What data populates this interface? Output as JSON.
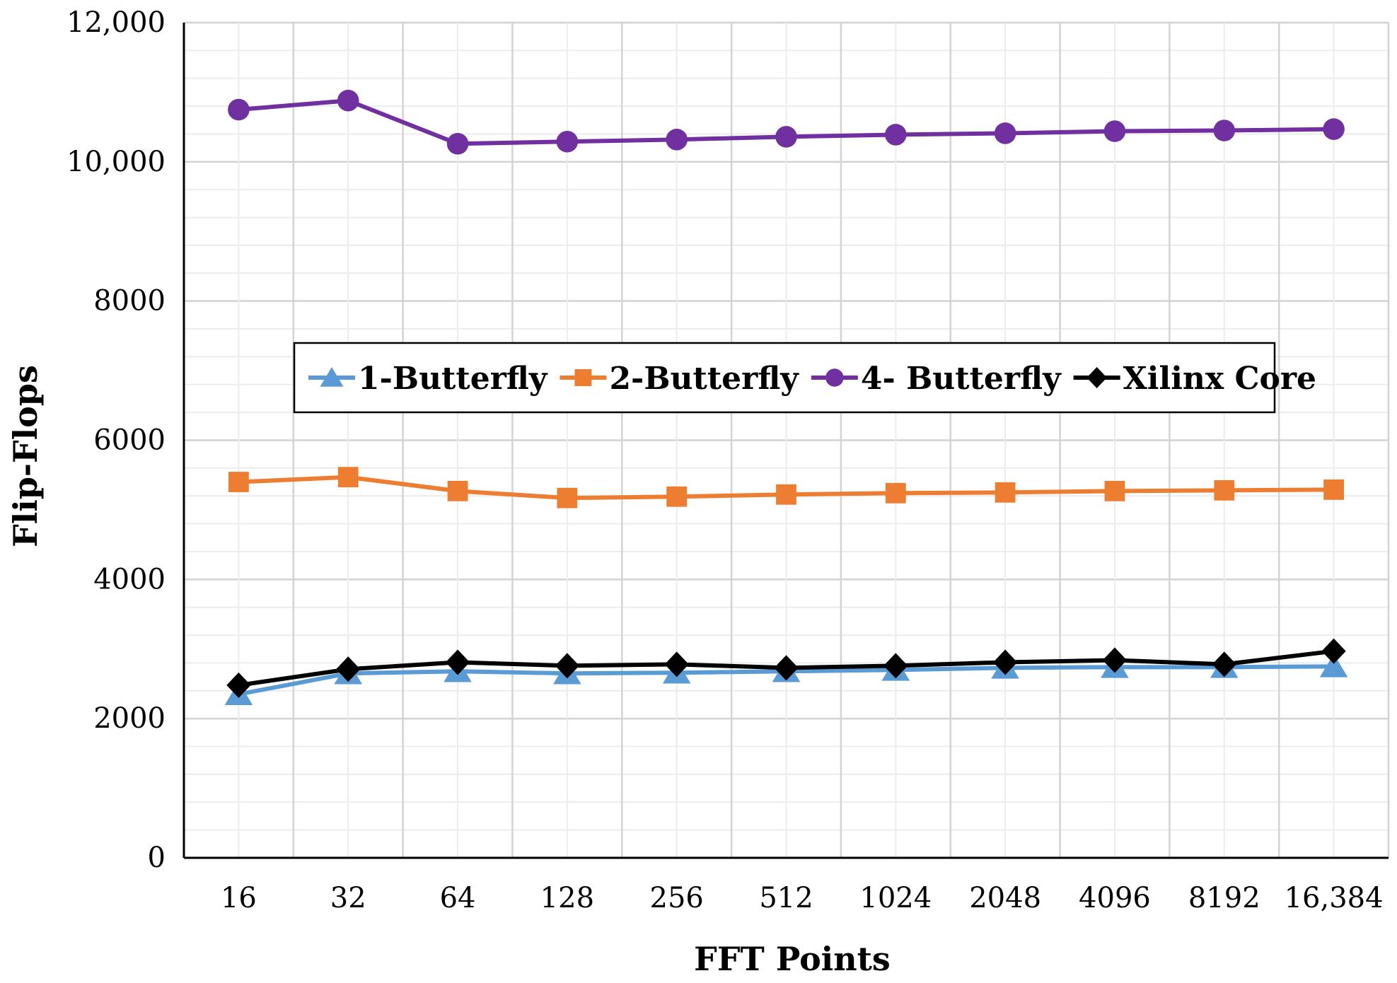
{
  "chart_data": {
    "type": "line",
    "title": "",
    "xlabel": "FFT Points",
    "ylabel": "Flip-Flops",
    "categories": [
      "16",
      "32",
      "64",
      "128",
      "256",
      "512",
      "1024",
      "2048",
      "4096",
      "8192",
      "16,384"
    ],
    "ylim": [
      0,
      12000
    ],
    "yticks": [
      {
        "value": 0,
        "label": "0"
      },
      {
        "value": 2000,
        "label": "2000"
      },
      {
        "value": 4000,
        "label": "4000"
      },
      {
        "value": 6000,
        "label": "6000"
      },
      {
        "value": 8000,
        "label": "8000"
      },
      {
        "value": 10000,
        "label": "10,000"
      },
      {
        "value": 12000,
        "label": "12,000"
      }
    ],
    "grid": true,
    "legend": "center",
    "series": [
      {
        "name": "1-Butterfly",
        "color": "#5b9bd5",
        "marker": "triangle",
        "values": [
          2350,
          2650,
          2680,
          2650,
          2660,
          2680,
          2700,
          2730,
          2740,
          2740,
          2750
        ]
      },
      {
        "name": "2-Butterfly",
        "color": "#ed7d31",
        "marker": "square",
        "values": [
          5400,
          5470,
          5270,
          5170,
          5190,
          5220,
          5240,
          5250,
          5270,
          5280,
          5290
        ]
      },
      {
        "name": "4- Butterfly",
        "color": "#7030a0",
        "marker": "circle",
        "values": [
          10750,
          10880,
          10260,
          10290,
          10320,
          10360,
          10390,
          10410,
          10440,
          10450,
          10470
        ]
      },
      {
        "name": "Xilinx Core",
        "color": "#000000",
        "marker": "diamond",
        "values": [
          2480,
          2710,
          2810,
          2760,
          2780,
          2730,
          2760,
          2810,
          2840,
          2780,
          2970
        ]
      }
    ]
  }
}
